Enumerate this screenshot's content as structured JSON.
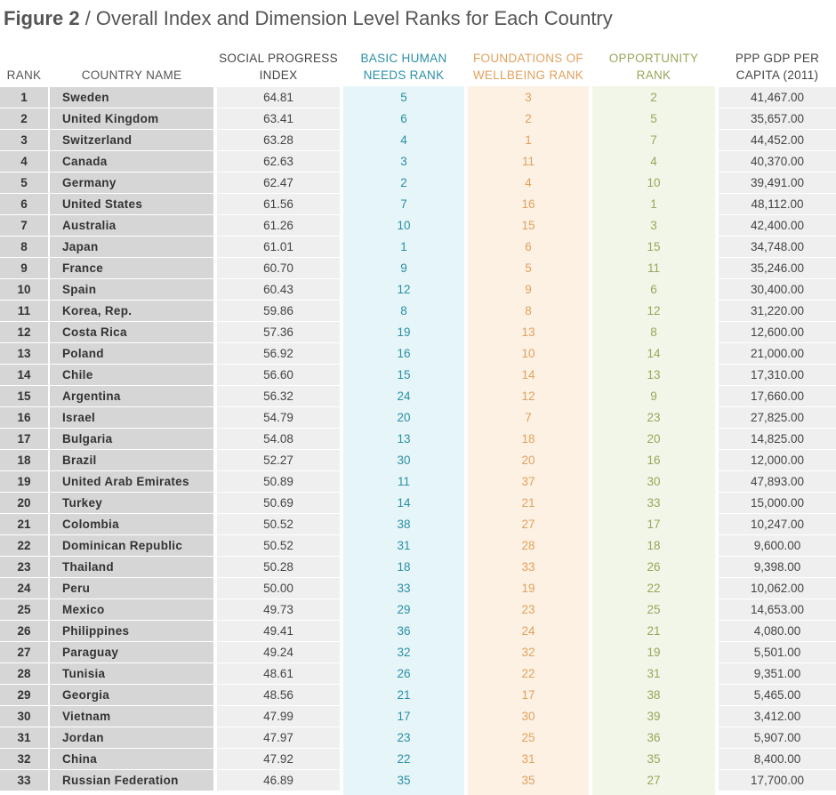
{
  "title": {
    "figure_label": "Figure 2",
    "separator": " / ",
    "text": "Overall Index and Dimension Level Ranks for Each Country"
  },
  "headers": {
    "rank": "RANK",
    "country": "COUNTRY NAME",
    "spi": "SOCIAL PROGRESS INDEX",
    "bhn": "BASIC HUMAN NEEDS RANK",
    "fow": "FOUNDATIONS OF WELLBEING RANK",
    "opp": "OPPORTUNITY RANK",
    "gdp": "PPP GDP PER CAPITA (2011)"
  },
  "colors": {
    "bhn": "#2a8fa6",
    "fow": "#e0a15e",
    "opp": "#9aa55a"
  },
  "rows": [
    {
      "rank": "1",
      "country": "Sweden",
      "spi": "64.81",
      "bhn": "5",
      "fow": "3",
      "opp": "2",
      "gdp": "41,467.00"
    },
    {
      "rank": "2",
      "country": "United Kingdom",
      "spi": "63.41",
      "bhn": "6",
      "fow": "2",
      "opp": "5",
      "gdp": "35,657.00"
    },
    {
      "rank": "3",
      "country": "Switzerland",
      "spi": "63.28",
      "bhn": "4",
      "fow": "1",
      "opp": "7",
      "gdp": "44,452.00"
    },
    {
      "rank": "4",
      "country": "Canada",
      "spi": "62.63",
      "bhn": "3",
      "fow": "11",
      "opp": "4",
      "gdp": "40,370.00"
    },
    {
      "rank": "5",
      "country": "Germany",
      "spi": "62.47",
      "bhn": "2",
      "fow": "4",
      "opp": "10",
      "gdp": "39,491.00"
    },
    {
      "rank": "6",
      "country": "United States",
      "spi": "61.56",
      "bhn": "7",
      "fow": "16",
      "opp": "1",
      "gdp": "48,112.00"
    },
    {
      "rank": "7",
      "country": "Australia",
      "spi": "61.26",
      "bhn": "10",
      "fow": "15",
      "opp": "3",
      "gdp": "42,400.00"
    },
    {
      "rank": "8",
      "country": "Japan",
      "spi": "61.01",
      "bhn": "1",
      "fow": "6",
      "opp": "15",
      "gdp": "34,748.00"
    },
    {
      "rank": "9",
      "country": "France",
      "spi": "60.70",
      "bhn": "9",
      "fow": "5",
      "opp": "11",
      "gdp": "35,246.00"
    },
    {
      "rank": "10",
      "country": "Spain",
      "spi": "60.43",
      "bhn": "12",
      "fow": "9",
      "opp": "6",
      "gdp": "30,400.00"
    },
    {
      "rank": "11",
      "country": "Korea, Rep.",
      "spi": "59.86",
      "bhn": "8",
      "fow": "8",
      "opp": "12",
      "gdp": "31,220.00"
    },
    {
      "rank": "12",
      "country": "Costa Rica",
      "spi": "57.36",
      "bhn": "19",
      "fow": "13",
      "opp": "8",
      "gdp": "12,600.00"
    },
    {
      "rank": "13",
      "country": "Poland",
      "spi": "56.92",
      "bhn": "16",
      "fow": "10",
      "opp": "14",
      "gdp": "21,000.00"
    },
    {
      "rank": "14",
      "country": "Chile",
      "spi": "56.60",
      "bhn": "15",
      "fow": "14",
      "opp": "13",
      "gdp": "17,310.00"
    },
    {
      "rank": "15",
      "country": "Argentina",
      "spi": "56.32",
      "bhn": "24",
      "fow": "12",
      "opp": "9",
      "gdp": "17,660.00"
    },
    {
      "rank": "16",
      "country": "Israel",
      "spi": "54.79",
      "bhn": "20",
      "fow": "7",
      "opp": "23",
      "gdp": "27,825.00"
    },
    {
      "rank": "17",
      "country": "Bulgaria",
      "spi": "54.08",
      "bhn": "13",
      "fow": "18",
      "opp": "20",
      "gdp": "14,825.00"
    },
    {
      "rank": "18",
      "country": "Brazil",
      "spi": "52.27",
      "bhn": "30",
      "fow": "20",
      "opp": "16",
      "gdp": "12,000.00"
    },
    {
      "rank": "19",
      "country": "United Arab Emirates",
      "spi": "50.89",
      "bhn": "11",
      "fow": "37",
      "opp": "30",
      "gdp": "47,893.00"
    },
    {
      "rank": "20",
      "country": "Turkey",
      "spi": "50.69",
      "bhn": "14",
      "fow": "21",
      "opp": "33",
      "gdp": "15,000.00"
    },
    {
      "rank": "21",
      "country": "Colombia",
      "spi": "50.52",
      "bhn": "38",
      "fow": "27",
      "opp": "17",
      "gdp": "10,247.00"
    },
    {
      "rank": "22",
      "country": "Dominican Republic",
      "spi": "50.52",
      "bhn": "31",
      "fow": "28",
      "opp": "18",
      "gdp": "9,600.00"
    },
    {
      "rank": "23",
      "country": "Thailand",
      "spi": "50.28",
      "bhn": "18",
      "fow": "33",
      "opp": "26",
      "gdp": "9,398.00"
    },
    {
      "rank": "24",
      "country": "Peru",
      "spi": "50.00",
      "bhn": "33",
      "fow": "19",
      "opp": "22",
      "gdp": "10,062.00"
    },
    {
      "rank": "25",
      "country": "Mexico",
      "spi": "49.73",
      "bhn": "29",
      "fow": "23",
      "opp": "25",
      "gdp": "14,653.00"
    },
    {
      "rank": "26",
      "country": "Philippines",
      "spi": "49.41",
      "bhn": "36",
      "fow": "24",
      "opp": "21",
      "gdp": "4,080.00"
    },
    {
      "rank": "27",
      "country": "Paraguay",
      "spi": "49.24",
      "bhn": "32",
      "fow": "32",
      "opp": "19",
      "gdp": "5,501.00"
    },
    {
      "rank": "28",
      "country": "Tunisia",
      "spi": "48.61",
      "bhn": "26",
      "fow": "22",
      "opp": "31",
      "gdp": "9,351.00"
    },
    {
      "rank": "29",
      "country": "Georgia",
      "spi": "48.56",
      "bhn": "21",
      "fow": "17",
      "opp": "38",
      "gdp": "5,465.00"
    },
    {
      "rank": "30",
      "country": "Vietnam",
      "spi": "47.99",
      "bhn": "17",
      "fow": "30",
      "opp": "39",
      "gdp": "3,412.00"
    },
    {
      "rank": "31",
      "country": "Jordan",
      "spi": "47.97",
      "bhn": "23",
      "fow": "25",
      "opp": "36",
      "gdp": "5,907.00"
    },
    {
      "rank": "32",
      "country": "China",
      "spi": "47.92",
      "bhn": "22",
      "fow": "31",
      "opp": "35",
      "gdp": "8,400.00"
    },
    {
      "rank": "33",
      "country": "Russian Federation",
      "spi": "46.89",
      "bhn": "35",
      "fow": "35",
      "opp": "27",
      "gdp": "17,700.00"
    }
  ]
}
